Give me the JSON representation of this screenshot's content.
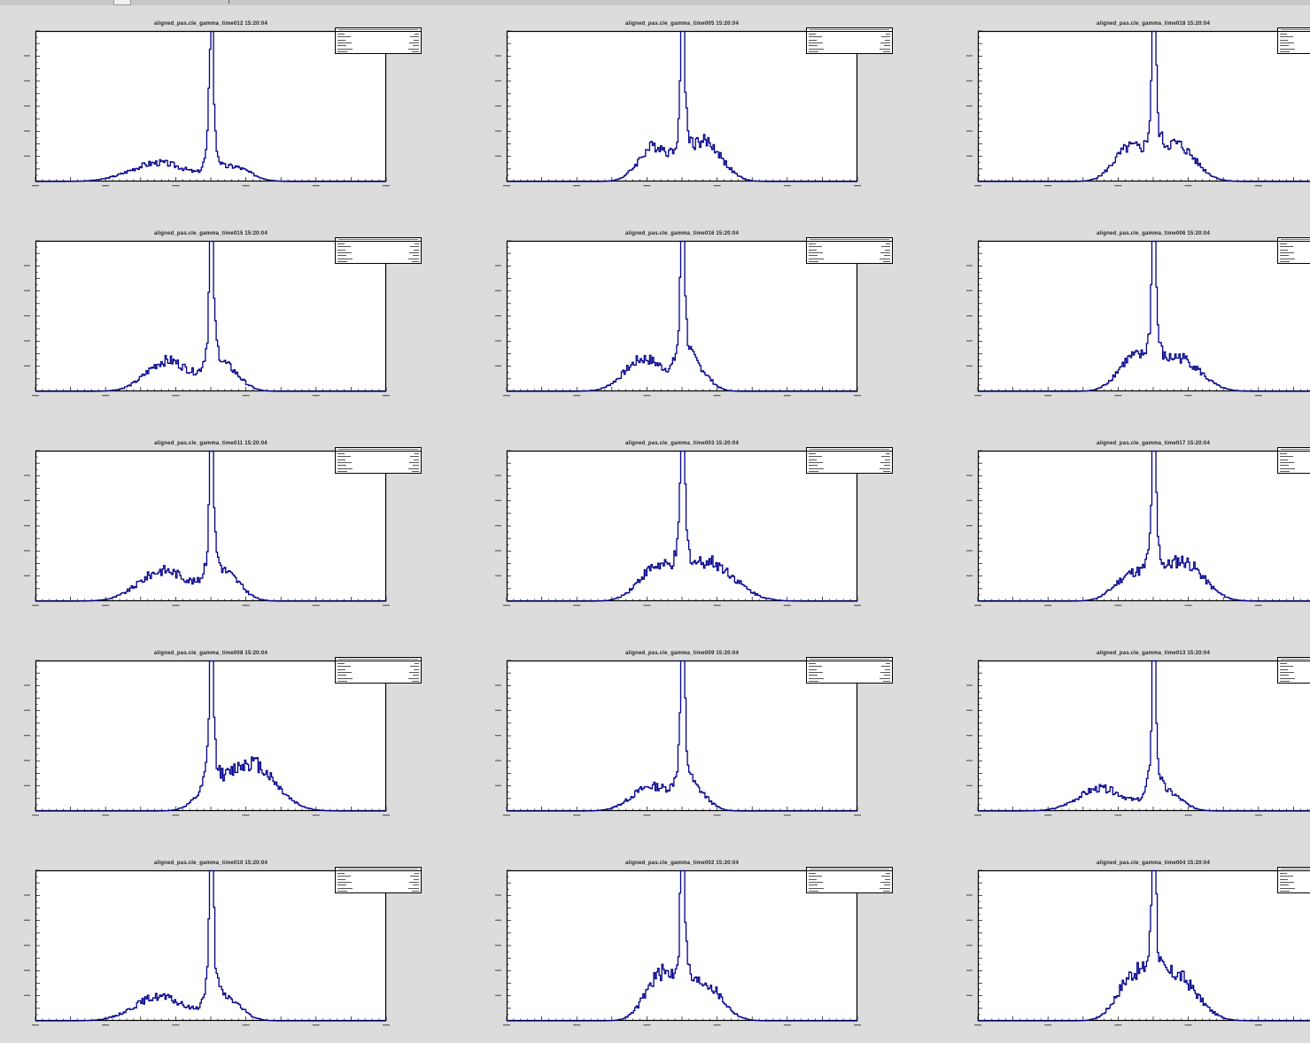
{
  "canvas": {
    "background": "#dcdcdc",
    "line_color": "#00008b"
  },
  "chart_data": [
    {
      "type": "bar",
      "title": "aligned_pas.cle_gamma_time012 15:20:04",
      "xlim": [
        0,
        1000
      ],
      "ylim": [
        0,
        360
      ],
      "peak": {
        "x": 500,
        "y": 340
      },
      "lobes": [
        {
          "x": 350,
          "y": 45,
          "w": 80
        },
        {
          "x": 560,
          "y": 35,
          "w": 50
        }
      ]
    },
    {
      "type": "bar",
      "title": "aligned_pas.cle_gamma_time005 15:20:04",
      "xlim": [
        0,
        1000
      ],
      "ylim": [
        0,
        280
      ],
      "peak": {
        "x": 500,
        "y": 265
      },
      "lobes": [
        {
          "x": 420,
          "y": 65,
          "w": 45
        },
        {
          "x": 560,
          "y": 75,
          "w": 50
        }
      ]
    },
    {
      "type": "bar",
      "title": "aligned_pas.cle_gamma_time018 15:20:04",
      "xlim": [
        0,
        1000
      ],
      "ylim": [
        0,
        280
      ],
      "peak": {
        "x": 500,
        "y": 260
      },
      "lobes": [
        {
          "x": 430,
          "y": 60,
          "w": 45
        },
        {
          "x": 560,
          "y": 70,
          "w": 55
        }
      ]
    },
    {
      "type": "bar",
      "title": "aligned_pas.cle_gamma_time015 15:20:04",
      "xlim": [
        0,
        1000
      ],
      "ylim": [
        0,
        220
      ],
      "peak": {
        "x": 500,
        "y": 205
      },
      "lobes": [
        {
          "x": 375,
          "y": 45,
          "w": 60
        },
        {
          "x": 530,
          "y": 40,
          "w": 45
        }
      ]
    },
    {
      "type": "bar",
      "title": "aligned_pas.cle_gamma_time016 15:20:04",
      "xlim": [
        0,
        1000
      ],
      "ylim": [
        0,
        300
      ],
      "peak": {
        "x": 500,
        "y": 285
      },
      "lobes": [
        {
          "x": 390,
          "y": 65,
          "w": 55
        },
        {
          "x": 525,
          "y": 60,
          "w": 40
        }
      ]
    },
    {
      "type": "bar",
      "title": "aligned_pas.cle_gamma_time006 15:20:04",
      "xlim": [
        0,
        1000
      ],
      "ylim": [
        0,
        380
      ],
      "peak": {
        "x": 500,
        "y": 360
      },
      "lobes": [
        {
          "x": 440,
          "y": 80,
          "w": 45
        },
        {
          "x": 570,
          "y": 85,
          "w": 60
        }
      ]
    },
    {
      "type": "bar",
      "title": "aligned_pas.cle_gamma_time011 15:20:04",
      "xlim": [
        0,
        1000
      ],
      "ylim": [
        0,
        340
      ],
      "peak": {
        "x": 500,
        "y": 320
      },
      "lobes": [
        {
          "x": 365,
          "y": 70,
          "w": 70
        },
        {
          "x": 535,
          "y": 65,
          "w": 45
        }
      ]
    },
    {
      "type": "bar",
      "title": "aligned_pas.cle_gamma_time003 15:20:04",
      "xlim": [
        0,
        1000
      ],
      "ylim": [
        0,
        360
      ],
      "peak": {
        "x": 500,
        "y": 340
      },
      "lobes": [
        {
          "x": 420,
          "y": 70,
          "w": 50
        },
        {
          "x": 570,
          "y": 95,
          "w": 75
        }
      ]
    },
    {
      "type": "bar",
      "title": "aligned_pas.cle_gamma_time017 15:20:04",
      "xlim": [
        0,
        1000
      ],
      "ylim": [
        0,
        170
      ],
      "peak": {
        "x": 500,
        "y": 160
      },
      "lobes": [
        {
          "x": 440,
          "y": 30,
          "w": 50
        },
        {
          "x": 580,
          "y": 45,
          "w": 60
        }
      ]
    },
    {
      "type": "bar",
      "title": "aligned_pas.cle_gamma_time008 15:20:04",
      "xlim": [
        0,
        1000
      ],
      "ylim": [
        0,
        340
      ],
      "peak": {
        "x": 500,
        "y": 325
      },
      "lobes": [
        {
          "x": 490,
          "y": 30,
          "w": 40
        },
        {
          "x": 610,
          "y": 110,
          "w": 70
        }
      ]
    },
    {
      "type": "bar",
      "title": "aligned_pas.cle_gamma_time009 15:20:04",
      "xlim": [
        0,
        1000
      ],
      "ylim": [
        0,
        340
      ],
      "peak": {
        "x": 500,
        "y": 325
      },
      "lobes": [
        {
          "x": 410,
          "y": 55,
          "w": 55
        },
        {
          "x": 525,
          "y": 55,
          "w": 40
        }
      ]
    },
    {
      "type": "bar",
      "title": "aligned_pas.cle_gamma_time013 15:20:04",
      "xlim": [
        0,
        1000
      ],
      "ylim": [
        0,
        300
      ],
      "peak": {
        "x": 500,
        "y": 285
      },
      "lobes": [
        {
          "x": 350,
          "y": 45,
          "w": 65
        },
        {
          "x": 530,
          "y": 40,
          "w": 45
        }
      ]
    },
    {
      "type": "bar",
      "title": "aligned_pas.cle_gamma_time010 15:20:04",
      "xlim": [
        0,
        1000
      ],
      "ylim": [
        0,
        310
      ],
      "peak": {
        "x": 500,
        "y": 295
      },
      "lobes": [
        {
          "x": 350,
          "y": 50,
          "w": 70
        },
        {
          "x": 535,
          "y": 50,
          "w": 45
        }
      ]
    },
    {
      "type": "bar",
      "title": "aligned_pas.cle_gamma_time002 15:20:04",
      "xlim": [
        0,
        1000
      ],
      "ylim": [
        0,
        180
      ],
      "peak": {
        "x": 500,
        "y": 170
      },
      "lobes": [
        {
          "x": 440,
          "y": 55,
          "w": 45
        },
        {
          "x": 560,
          "y": 45,
          "w": 50
        }
      ]
    },
    {
      "type": "bar",
      "title": "aligned_pas.cle_gamma_time004 15:20:04",
      "xlim": [
        0,
        1000
      ],
      "ylim": [
        0,
        180
      ],
      "peak": {
        "x": 500,
        "y": 170
      },
      "lobes": [
        {
          "x": 440,
          "y": 50,
          "w": 45
        },
        {
          "x": 560,
          "y": 55,
          "w": 60
        }
      ]
    }
  ]
}
